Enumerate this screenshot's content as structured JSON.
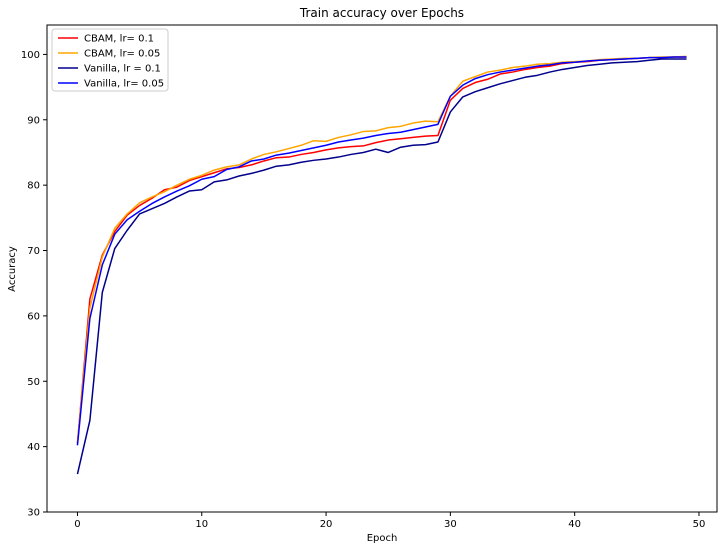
{
  "chart_data": {
    "type": "line",
    "title": "Train accuracy over Epochs",
    "xlabel": "Epoch",
    "ylabel": "Accuracy",
    "xlim": [
      -2.45,
      51.45
    ],
    "ylim": [
      30,
      104.5
    ],
    "xticks": [
      0,
      10,
      20,
      30,
      40,
      50
    ],
    "yticks": [
      30,
      40,
      50,
      60,
      70,
      80,
      90,
      100
    ],
    "grid": false,
    "legend_position": "top-left",
    "x": [
      0,
      1,
      2,
      3,
      4,
      5,
      6,
      7,
      8,
      9,
      10,
      11,
      12,
      13,
      14,
      15,
      16,
      17,
      18,
      19,
      20,
      21,
      22,
      23,
      24,
      25,
      26,
      27,
      28,
      29,
      30,
      31,
      32,
      33,
      34,
      35,
      36,
      37,
      38,
      39,
      40,
      41,
      42,
      43,
      44,
      45,
      46,
      47,
      48,
      49
    ],
    "series": [
      {
        "name": "CBAM, lr= 0.1",
        "color": "#ff0000",
        "values": [
          40.5,
          62.6,
          69.3,
          72.9,
          75.4,
          76.9,
          78.0,
          79.3,
          79.7,
          80.7,
          81.3,
          81.9,
          82.5,
          82.7,
          83.1,
          83.7,
          84.2,
          84.3,
          84.7,
          85.0,
          85.4,
          85.7,
          85.9,
          86.0,
          86.5,
          86.9,
          87.1,
          87.3,
          87.5,
          87.6,
          93.0,
          94.8,
          95.7,
          96.2,
          97.0,
          97.3,
          97.7,
          98.0,
          98.2,
          98.6,
          98.8,
          98.9,
          99.1,
          99.2,
          99.3,
          99.4,
          99.5,
          99.5,
          99.6,
          99.6
        ]
      },
      {
        "name": "CBAM, lr= 0.05",
        "color": "#ffa500",
        "values": [
          40.6,
          61.2,
          69.0,
          73.4,
          75.6,
          77.3,
          78.2,
          79.0,
          80.0,
          80.9,
          81.5,
          82.3,
          82.8,
          83.1,
          84.0,
          84.7,
          85.1,
          85.6,
          86.1,
          86.8,
          86.7,
          87.3,
          87.7,
          88.2,
          88.3,
          88.8,
          89.0,
          89.5,
          89.8,
          89.7,
          93.6,
          95.9,
          96.6,
          97.3,
          97.6,
          98.0,
          98.2,
          98.5,
          98.6,
          98.8,
          98.9,
          99.0,
          99.2,
          99.3,
          99.4,
          99.4,
          99.5,
          99.6,
          99.6,
          99.7
        ]
      },
      {
        "name": "Vanilla, lr = 0.1",
        "color": "#00008b",
        "values": [
          35.8,
          44.0,
          63.6,
          70.3,
          73.1,
          75.6,
          76.4,
          77.2,
          78.2,
          79.1,
          79.3,
          80.5,
          80.8,
          81.4,
          81.8,
          82.3,
          82.9,
          83.1,
          83.5,
          83.8,
          84.0,
          84.3,
          84.7,
          85.0,
          85.5,
          85.0,
          85.8,
          86.1,
          86.2,
          86.6,
          91.2,
          93.5,
          94.3,
          94.9,
          95.5,
          96.0,
          96.5,
          96.8,
          97.3,
          97.7,
          98.0,
          98.3,
          98.5,
          98.7,
          98.8,
          98.9,
          99.1,
          99.3,
          99.3,
          99.3
        ]
      },
      {
        "name": "Vanilla, lr= 0.05",
        "color": "#0000ff",
        "values": [
          40.2,
          59.6,
          67.8,
          72.5,
          74.7,
          76.0,
          77.2,
          78.2,
          79.1,
          79.9,
          80.9,
          81.3,
          82.4,
          82.8,
          83.7,
          84.0,
          84.6,
          84.9,
          85.3,
          85.7,
          86.1,
          86.6,
          86.9,
          87.2,
          87.6,
          87.9,
          88.1,
          88.5,
          88.9,
          89.3,
          93.6,
          95.3,
          96.3,
          96.9,
          97.3,
          97.6,
          97.9,
          98.2,
          98.4,
          98.7,
          98.8,
          99.0,
          99.1,
          99.2,
          99.3,
          99.4,
          99.5,
          99.5,
          99.6,
          99.6
        ]
      }
    ]
  }
}
